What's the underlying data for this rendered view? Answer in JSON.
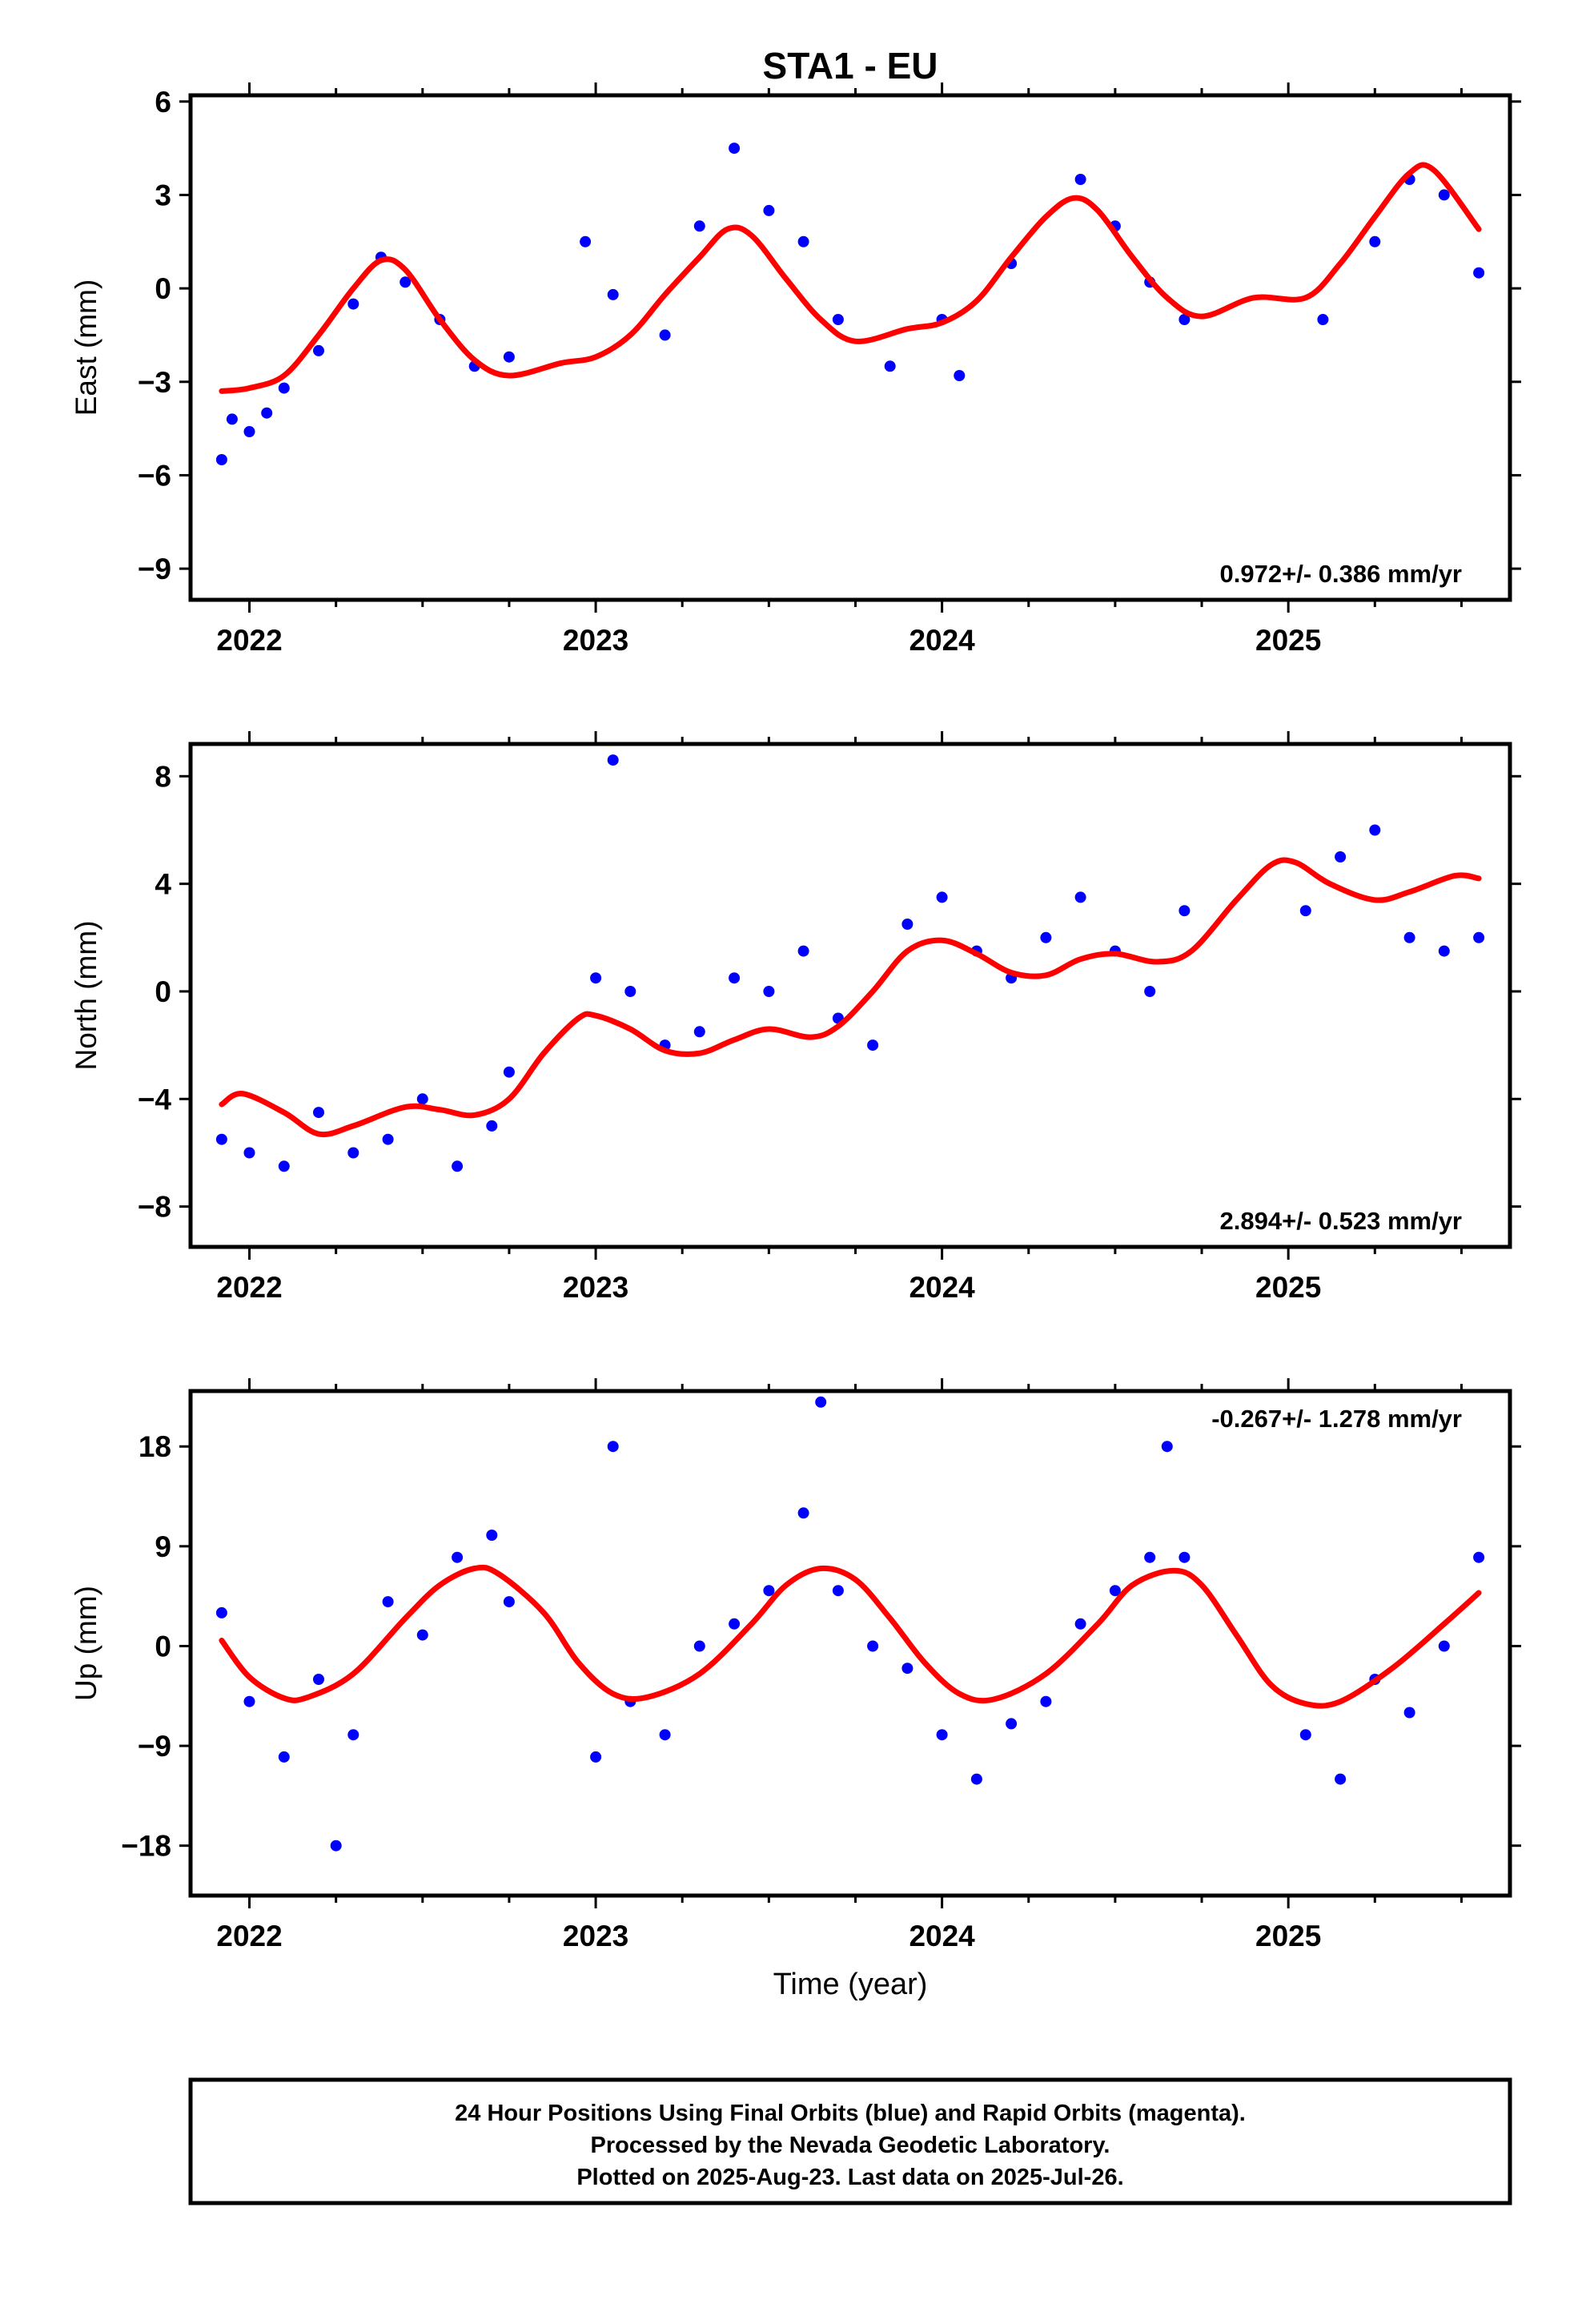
{
  "title": "STA1 - EU",
  "x_axis_label": "Time (year)",
  "footer": {
    "line1": "24 Hour Positions Using Final Orbits (blue) and Rapid Orbits (magenta).",
    "line2": "Processed by the Nevada Geodetic Laboratory.",
    "line3": "Plotted on 2025-Aug-23. Last data on 2025-Jul-26."
  },
  "colors": {
    "points": "#0000ff",
    "model": "#ff0000",
    "frame": "#000000"
  },
  "chart_data": [
    {
      "type": "scatter",
      "name": "east",
      "ylabel": "East (mm)",
      "xlim": [
        2021.83,
        2025.64
      ],
      "ylim": [
        -10.0,
        6.2
      ],
      "yticks": [
        6,
        3,
        0,
        -3,
        -6,
        -9
      ],
      "ytick_labels": [
        "6",
        "3",
        "0",
        "−3",
        "−6",
        "−9"
      ],
      "xticks": [
        2022,
        2023,
        2024,
        2025
      ],
      "xtick_labels": [
        "2022",
        "2023",
        "2024",
        "2025"
      ],
      "rate_label": "0.972+/- 0.386 mm/yr",
      "rate_position": "bottom-right",
      "grid": false,
      "points_sampled": [
        [
          2021.92,
          -5.5
        ],
        [
          2021.95,
          -4.2
        ],
        [
          2022.0,
          -4.6
        ],
        [
          2022.05,
          -4.0
        ],
        [
          2022.1,
          -3.2
        ],
        [
          2022.2,
          -2.0
        ],
        [
          2022.3,
          -0.5
        ],
        [
          2022.38,
          1.0
        ],
        [
          2022.45,
          0.2
        ],
        [
          2022.55,
          -1.0
        ],
        [
          2022.65,
          -2.5
        ],
        [
          2022.75,
          -2.2
        ],
        [
          2022.97,
          1.5
        ],
        [
          2023.05,
          -0.2
        ],
        [
          2023.2,
          -1.5
        ],
        [
          2023.3,
          2.0
        ],
        [
          2023.4,
          4.5
        ],
        [
          2023.5,
          2.5
        ],
        [
          2023.6,
          1.5
        ],
        [
          2023.7,
          -1.0
        ],
        [
          2023.85,
          -2.5
        ],
        [
          2024.0,
          -1.0
        ],
        [
          2024.05,
          -2.8
        ],
        [
          2024.2,
          0.8
        ],
        [
          2024.4,
          3.5
        ],
        [
          2024.5,
          2.0
        ],
        [
          2024.6,
          0.2
        ],
        [
          2024.7,
          -1.0
        ],
        [
          2025.1,
          -1.0
        ],
        [
          2025.25,
          1.5
        ],
        [
          2025.35,
          3.5
        ],
        [
          2025.45,
          3.0
        ],
        [
          2025.55,
          0.5
        ]
      ],
      "fit_curve": [
        [
          2021.92,
          -3.3
        ],
        [
          2022.0,
          -3.2
        ],
        [
          2022.1,
          -2.8
        ],
        [
          2022.2,
          -1.5
        ],
        [
          2022.3,
          0.0
        ],
        [
          2022.38,
          0.9
        ],
        [
          2022.45,
          0.6
        ],
        [
          2022.55,
          -1.0
        ],
        [
          2022.65,
          -2.3
        ],
        [
          2022.75,
          -2.8
        ],
        [
          2022.9,
          -2.4
        ],
        [
          2023.0,
          -2.2
        ],
        [
          2023.1,
          -1.5
        ],
        [
          2023.2,
          -0.2
        ],
        [
          2023.3,
          1.0
        ],
        [
          2023.38,
          1.9
        ],
        [
          2023.45,
          1.7
        ],
        [
          2023.55,
          0.3
        ],
        [
          2023.65,
          -1.0
        ],
        [
          2023.75,
          -1.7
        ],
        [
          2023.9,
          -1.3
        ],
        [
          2024.0,
          -1.1
        ],
        [
          2024.1,
          -0.4
        ],
        [
          2024.2,
          1.0
        ],
        [
          2024.3,
          2.3
        ],
        [
          2024.38,
          2.9
        ],
        [
          2024.45,
          2.5
        ],
        [
          2024.55,
          1.0
        ],
        [
          2024.65,
          -0.3
        ],
        [
          2024.75,
          -0.9
        ],
        [
          2024.9,
          -0.3
        ],
        [
          2025.05,
          -0.3
        ],
        [
          2025.15,
          0.8
        ],
        [
          2025.25,
          2.3
        ],
        [
          2025.35,
          3.7
        ],
        [
          2025.42,
          3.8
        ],
        [
          2025.55,
          1.9
        ]
      ]
    },
    {
      "type": "scatter",
      "name": "north",
      "ylabel": "North (mm)",
      "xlim": [
        2021.83,
        2025.64
      ],
      "ylim": [
        -9.5,
        9.2
      ],
      "yticks": [
        8,
        4,
        0,
        -4,
        -8
      ],
      "ytick_labels": [
        "8",
        "4",
        "0",
        "−4",
        "−8"
      ],
      "xticks": [
        2022,
        2023,
        2024,
        2025
      ],
      "xtick_labels": [
        "2022",
        "2023",
        "2024",
        "2025"
      ],
      "rate_label": "2.894+/- 0.523 mm/yr",
      "rate_position": "bottom-right",
      "grid": false,
      "points_sampled": [
        [
          2021.92,
          -5.5
        ],
        [
          2022.0,
          -6.0
        ],
        [
          2022.1,
          -6.5
        ],
        [
          2022.2,
          -4.5
        ],
        [
          2022.3,
          -6.0
        ],
        [
          2022.4,
          -5.5
        ],
        [
          2022.5,
          -4.0
        ],
        [
          2022.6,
          -6.5
        ],
        [
          2022.7,
          -5.0
        ],
        [
          2022.75,
          -3.0
        ],
        [
          2023.0,
          0.5
        ],
        [
          2023.05,
          8.6
        ],
        [
          2023.1,
          0.0
        ],
        [
          2023.2,
          -2.0
        ],
        [
          2023.3,
          -1.5
        ],
        [
          2023.4,
          0.5
        ],
        [
          2023.5,
          0.0
        ],
        [
          2023.6,
          1.5
        ],
        [
          2023.7,
          -1.0
        ],
        [
          2023.8,
          -2.0
        ],
        [
          2023.9,
          2.5
        ],
        [
          2024.0,
          3.5
        ],
        [
          2024.1,
          1.5
        ],
        [
          2024.2,
          0.5
        ],
        [
          2024.3,
          2.0
        ],
        [
          2024.4,
          3.5
        ],
        [
          2024.5,
          1.5
        ],
        [
          2024.6,
          0.0
        ],
        [
          2024.7,
          3.0
        ],
        [
          2025.05,
          3.0
        ],
        [
          2025.15,
          5.0
        ],
        [
          2025.25,
          6.0
        ],
        [
          2025.35,
          2.0
        ],
        [
          2025.45,
          1.5
        ],
        [
          2025.55,
          2.0
        ]
      ],
      "fit_curve": [
        [
          2021.92,
          -4.2
        ],
        [
          2021.98,
          -3.8
        ],
        [
          2022.1,
          -4.5
        ],
        [
          2022.2,
          -5.3
        ],
        [
          2022.3,
          -5.0
        ],
        [
          2022.45,
          -4.3
        ],
        [
          2022.55,
          -4.4
        ],
        [
          2022.65,
          -4.6
        ],
        [
          2022.75,
          -4.0
        ],
        [
          2022.85,
          -2.3
        ],
        [
          2022.95,
          -1.0
        ],
        [
          2023.0,
          -0.9
        ],
        [
          2023.1,
          -1.4
        ],
        [
          2023.2,
          -2.2
        ],
        [
          2023.3,
          -2.3
        ],
        [
          2023.4,
          -1.8
        ],
        [
          2023.5,
          -1.4
        ],
        [
          2023.62,
          -1.7
        ],
        [
          2023.7,
          -1.3
        ],
        [
          2023.8,
          0.0
        ],
        [
          2023.9,
          1.5
        ],
        [
          2024.0,
          1.9
        ],
        [
          2024.1,
          1.4
        ],
        [
          2024.2,
          0.7
        ],
        [
          2024.3,
          0.6
        ],
        [
          2024.4,
          1.2
        ],
        [
          2024.5,
          1.4
        ],
        [
          2024.62,
          1.1
        ],
        [
          2024.72,
          1.5
        ],
        [
          2024.85,
          3.4
        ],
        [
          2024.95,
          4.7
        ],
        [
          2025.02,
          4.8
        ],
        [
          2025.12,
          4.0
        ],
        [
          2025.25,
          3.4
        ],
        [
          2025.35,
          3.7
        ],
        [
          2025.48,
          4.3
        ],
        [
          2025.55,
          4.2
        ]
      ]
    },
    {
      "type": "scatter",
      "name": "up",
      "ylabel": "Up (mm)",
      "xlim": [
        2021.83,
        2025.64
      ],
      "ylim": [
        -22.5,
        23.0
      ],
      "yticks": [
        18,
        9,
        0,
        -9,
        -18
      ],
      "ytick_labels": [
        "18",
        "9",
        "0",
        "−9",
        "−18"
      ],
      "xticks": [
        2022,
        2023,
        2024,
        2025
      ],
      "xtick_labels": [
        "2022",
        "2023",
        "2024",
        "2025"
      ],
      "rate_label": "-0.267+/- 1.278 mm/yr",
      "rate_position": "top-right",
      "grid": false,
      "points_sampled": [
        [
          2021.92,
          3.0
        ],
        [
          2022.0,
          -5.0
        ],
        [
          2022.1,
          -10.0
        ],
        [
          2022.2,
          -3.0
        ],
        [
          2022.25,
          -18.0
        ],
        [
          2022.3,
          -8.0
        ],
        [
          2022.4,
          4.0
        ],
        [
          2022.5,
          1.0
        ],
        [
          2022.6,
          8.0
        ],
        [
          2022.7,
          10.0
        ],
        [
          2022.75,
          4.0
        ],
        [
          2023.0,
          -10.0
        ],
        [
          2023.05,
          18.0
        ],
        [
          2023.1,
          -5.0
        ],
        [
          2023.2,
          -8.0
        ],
        [
          2023.3,
          0.0
        ],
        [
          2023.4,
          2.0
        ],
        [
          2023.5,
          5.0
        ],
        [
          2023.6,
          12.0
        ],
        [
          2023.65,
          22.0
        ],
        [
          2023.7,
          5.0
        ],
        [
          2023.8,
          0.0
        ],
        [
          2023.9,
          -2.0
        ],
        [
          2024.0,
          -8.0
        ],
        [
          2024.1,
          -12.0
        ],
        [
          2024.2,
          -7.0
        ],
        [
          2024.3,
          -5.0
        ],
        [
          2024.4,
          2.0
        ],
        [
          2024.5,
          5.0
        ],
        [
          2024.6,
          8.0
        ],
        [
          2024.65,
          18.0
        ],
        [
          2024.7,
          8.0
        ],
        [
          2025.05,
          -8.0
        ],
        [
          2025.15,
          -12.0
        ],
        [
          2025.25,
          -3.0
        ],
        [
          2025.35,
          -6.0
        ],
        [
          2025.45,
          0.0
        ],
        [
          2025.55,
          8.0
        ]
      ],
      "fit_curve": [
        [
          2021.92,
          0.5
        ],
        [
          2022.0,
          -2.8
        ],
        [
          2022.1,
          -4.7
        ],
        [
          2022.17,
          -4.6
        ],
        [
          2022.3,
          -2.5
        ],
        [
          2022.45,
          2.5
        ],
        [
          2022.55,
          5.5
        ],
        [
          2022.65,
          7.0
        ],
        [
          2022.72,
          6.5
        ],
        [
          2022.85,
          3.0
        ],
        [
          2022.95,
          -1.5
        ],
        [
          2023.05,
          -4.3
        ],
        [
          2023.15,
          -4.6
        ],
        [
          2023.3,
          -2.5
        ],
        [
          2023.45,
          2.0
        ],
        [
          2023.55,
          5.5
        ],
        [
          2023.65,
          7.0
        ],
        [
          2023.75,
          6.0
        ],
        [
          2023.85,
          2.5
        ],
        [
          2023.95,
          -1.5
        ],
        [
          2024.05,
          -4.3
        ],
        [
          2024.15,
          -4.8
        ],
        [
          2024.3,
          -2.5
        ],
        [
          2024.45,
          2.0
        ],
        [
          2024.55,
          5.5
        ],
        [
          2024.67,
          6.8
        ],
        [
          2024.75,
          5.5
        ],
        [
          2024.85,
          1.0
        ],
        [
          2024.95,
          -3.5
        ],
        [
          2025.05,
          -5.2
        ],
        [
          2025.15,
          -5.0
        ],
        [
          2025.3,
          -2.0
        ],
        [
          2025.45,
          2.0
        ],
        [
          2025.55,
          4.8
        ]
      ]
    }
  ]
}
